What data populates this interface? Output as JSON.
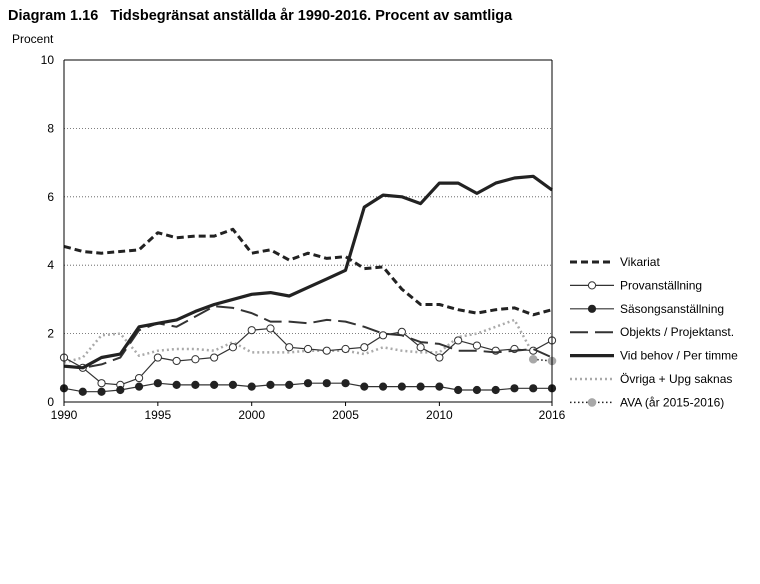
{
  "header": {
    "number": "Diagram 1.16",
    "title": "Tidsbegränsat anställda år 1990-2016. Procent av samtliga"
  },
  "chart_data": {
    "type": "line",
    "title": "Tidsbegränsat anställda år 1990-2016. Procent av samtliga",
    "ylabel": "Procent",
    "xlabel": "",
    "ylim": [
      0,
      10
    ],
    "yticks": [
      0,
      2,
      4,
      6,
      8,
      10
    ],
    "xlim": [
      1990,
      2016
    ],
    "xticks": [
      1990,
      1995,
      2000,
      2005,
      2010,
      2016
    ],
    "grid": "horizontal dotted",
    "legend_position": "right",
    "x": [
      1990,
      1991,
      1992,
      1993,
      1994,
      1995,
      1996,
      1997,
      1998,
      1999,
      2000,
      2001,
      2002,
      2003,
      2004,
      2005,
      2006,
      2007,
      2008,
      2009,
      2010,
      2011,
      2012,
      2013,
      2014,
      2015,
      2016
    ],
    "series": [
      {
        "name": "Vikariat",
        "style": "dashed-thick",
        "marker": "none",
        "values": [
          4.55,
          4.4,
          4.35,
          4.4,
          4.45,
          4.95,
          4.8,
          4.85,
          4.85,
          5.05,
          4.35,
          4.45,
          4.15,
          4.35,
          4.2,
          4.25,
          3.9,
          3.95,
          3.3,
          2.85,
          2.85,
          2.7,
          2.6,
          2.7,
          2.75,
          2.55,
          2.7
        ]
      },
      {
        "name": "Provanställning",
        "style": "solid-thin",
        "marker": "open-circle",
        "values": [
          1.3,
          1.0,
          0.55,
          0.5,
          0.7,
          1.3,
          1.2,
          1.25,
          1.3,
          1.6,
          2.1,
          2.15,
          1.6,
          1.55,
          1.5,
          1.55,
          1.6,
          1.95,
          2.05,
          1.6,
          1.3,
          1.8,
          1.65,
          1.5,
          1.55,
          1.5,
          1.8
        ]
      },
      {
        "name": "Säsongsanställning",
        "style": "solid-thin",
        "marker": "filled-circle",
        "values": [
          0.4,
          0.3,
          0.3,
          0.35,
          0.45,
          0.55,
          0.5,
          0.5,
          0.5,
          0.5,
          0.45,
          0.5,
          0.5,
          0.55,
          0.55,
          0.55,
          0.45,
          0.45,
          0.45,
          0.45,
          0.45,
          0.35,
          0.35,
          0.35,
          0.4,
          0.4,
          0.4
        ]
      },
      {
        "name": "Objekts / Projektanst.",
        "style": "long-dash",
        "marker": "none",
        "values": [
          1.05,
          1.0,
          1.1,
          1.3,
          2.1,
          2.3,
          2.2,
          2.5,
          2.8,
          2.75,
          2.6,
          2.35,
          2.35,
          2.3,
          2.4,
          2.35,
          2.2,
          2.0,
          1.95,
          1.75,
          1.7,
          1.5,
          1.5,
          1.45,
          1.5,
          1.55,
          1.3
        ]
      },
      {
        "name": "Vid behov / Per timme",
        "style": "solid-thick",
        "marker": "none",
        "values": [
          1.05,
          1.0,
          1.3,
          1.4,
          2.2,
          2.3,
          2.4,
          2.65,
          2.85,
          3.0,
          3.15,
          3.2,
          3.1,
          3.35,
          3.6,
          3.85,
          5.7,
          6.05,
          6.0,
          5.8,
          6.4,
          6.4,
          6.1,
          6.4,
          6.55,
          6.6,
          6.2
        ]
      },
      {
        "name": "Övriga + Upg saknas",
        "style": "dotted-gray",
        "marker": "none",
        "values": [
          1.15,
          1.3,
          1.95,
          2.0,
          1.35,
          1.5,
          1.55,
          1.55,
          1.5,
          1.75,
          1.45,
          1.45,
          1.45,
          1.5,
          1.5,
          1.5,
          1.4,
          1.6,
          1.5,
          1.45,
          1.45,
          1.9,
          2.0,
          2.2,
          2.4,
          1.4,
          null
        ]
      },
      {
        "name": "AVA (år 2015-2016)",
        "style": "dotted-black",
        "marker": "gray-circle",
        "values": [
          null,
          null,
          null,
          null,
          null,
          null,
          null,
          null,
          null,
          null,
          null,
          null,
          null,
          null,
          null,
          null,
          null,
          null,
          null,
          null,
          null,
          null,
          null,
          null,
          null,
          1.25,
          1.2
        ]
      }
    ]
  }
}
